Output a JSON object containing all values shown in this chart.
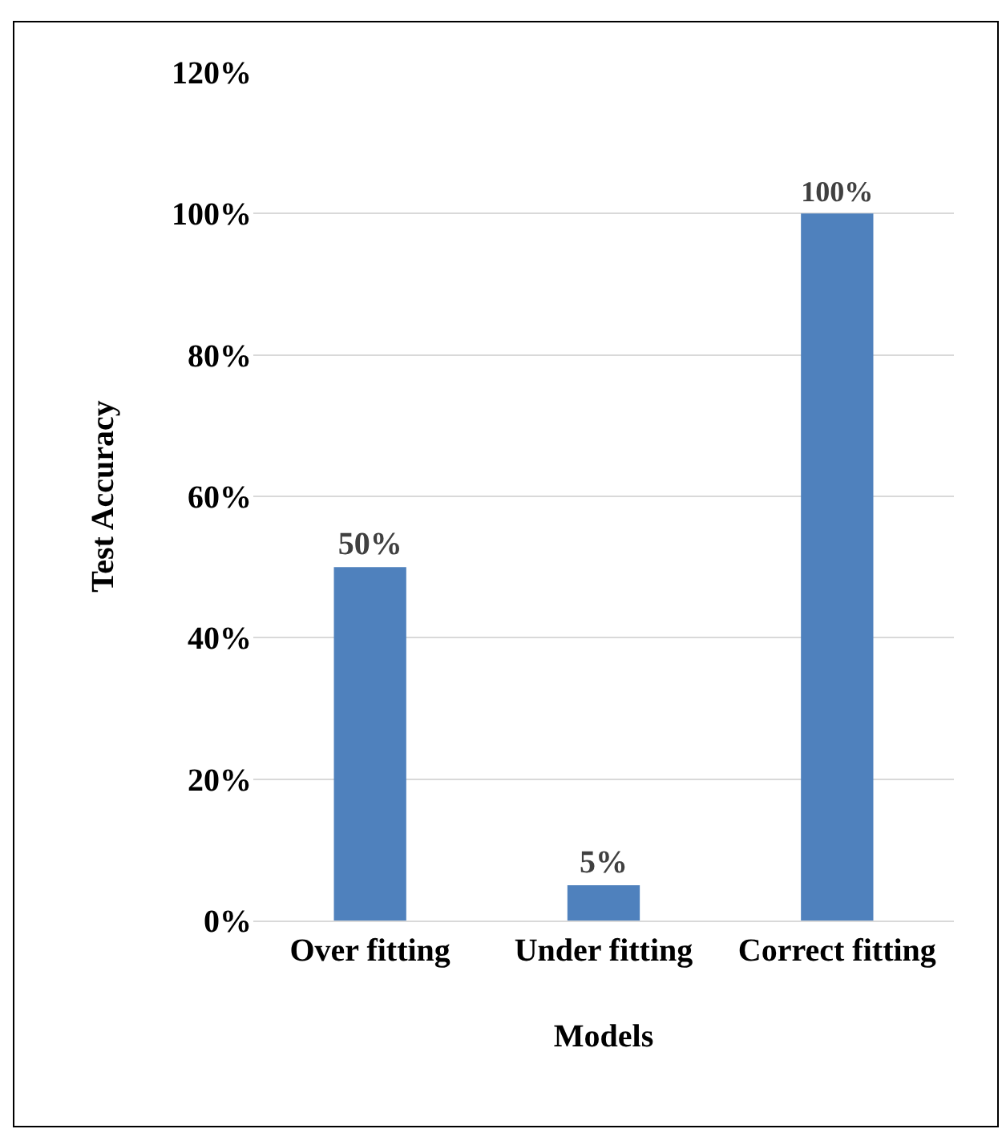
{
  "chart_data": {
    "type": "bar",
    "xlabel": "Models",
    "ylabel": "Test Accuracy",
    "categories": [
      "Over fitting",
      "Under fitting",
      "Correct fitting"
    ],
    "values": [
      50,
      5,
      100
    ],
    "color": "#4f81bd",
    "value_labels": [
      "50%",
      "5%",
      "100%"
    ],
    "ylim": [
      0,
      120
    ],
    "yticks": [
      {
        "value": 0,
        "label": "0%"
      },
      {
        "value": 20,
        "label": "20%"
      },
      {
        "value": 40,
        "label": "40%"
      },
      {
        "value": 60,
        "label": "60%"
      },
      {
        "value": 80,
        "label": "80%"
      },
      {
        "value": 100,
        "label": "100%"
      },
      {
        "value": 120,
        "label": "120%"
      }
    ],
    "grid": "y"
  }
}
